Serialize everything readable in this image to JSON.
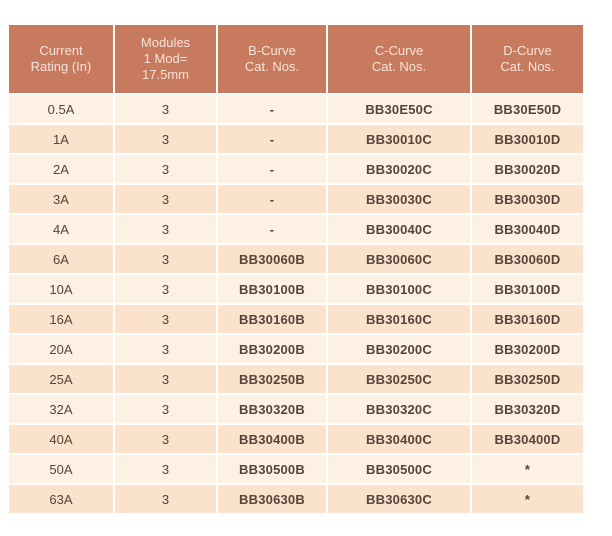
{
  "colors": {
    "header_background": "#c87a5f",
    "header_text": "#f5e4da",
    "row_light": "#fcf1e2",
    "row_dark": "#fbe2cc",
    "body_text": "#55443a",
    "separator": "#ffffff",
    "page_background": "#ffffff"
  },
  "table": {
    "columns": [
      {
        "id": "current-rating",
        "label": "Current\nRating (In)"
      },
      {
        "id": "modules",
        "label": "Modules\n1 Mod=\n17.5mm"
      },
      {
        "id": "b-curve",
        "label": "B-Curve\nCat. Nos."
      },
      {
        "id": "c-curve",
        "label": "C-Curve\nCat. Nos."
      },
      {
        "id": "d-curve",
        "label": "D-Curve\nCat. Nos."
      }
    ],
    "rows": [
      [
        "0.5A",
        "3",
        "-",
        "BB30E50C",
        "BB30E50D"
      ],
      [
        "1A",
        "3",
        "-",
        "BB30010C",
        "BB30010D"
      ],
      [
        "2A",
        "3",
        "-",
        "BB30020C",
        "BB30020D"
      ],
      [
        "3A",
        "3",
        "-",
        "BB30030C",
        "BB30030D"
      ],
      [
        "4A",
        "3",
        "-",
        "BB30040C",
        "BB30040D"
      ],
      [
        "6A",
        "3",
        "BB30060B",
        "BB30060C",
        "BB30060D"
      ],
      [
        "10A",
        "3",
        "BB30100B",
        "BB30100C",
        "BB30100D"
      ],
      [
        "16A",
        "3",
        "BB30160B",
        "BB30160C",
        "BB30160D"
      ],
      [
        "20A",
        "3",
        "BB30200B",
        "BB30200C",
        "BB30200D"
      ],
      [
        "25A",
        "3",
        "BB30250B",
        "BB30250C",
        "BB30250D"
      ],
      [
        "32A",
        "3",
        "BB30320B",
        "BB30320C",
        "BB30320D"
      ],
      [
        "40A",
        "3",
        "BB30400B",
        "BB30400C",
        "BB30400D"
      ],
      [
        "50A",
        "3",
        "BB30500B",
        "BB30500C",
        "*"
      ],
      [
        "63A",
        "3",
        "BB30630B",
        "BB30630C",
        "*"
      ]
    ]
  }
}
